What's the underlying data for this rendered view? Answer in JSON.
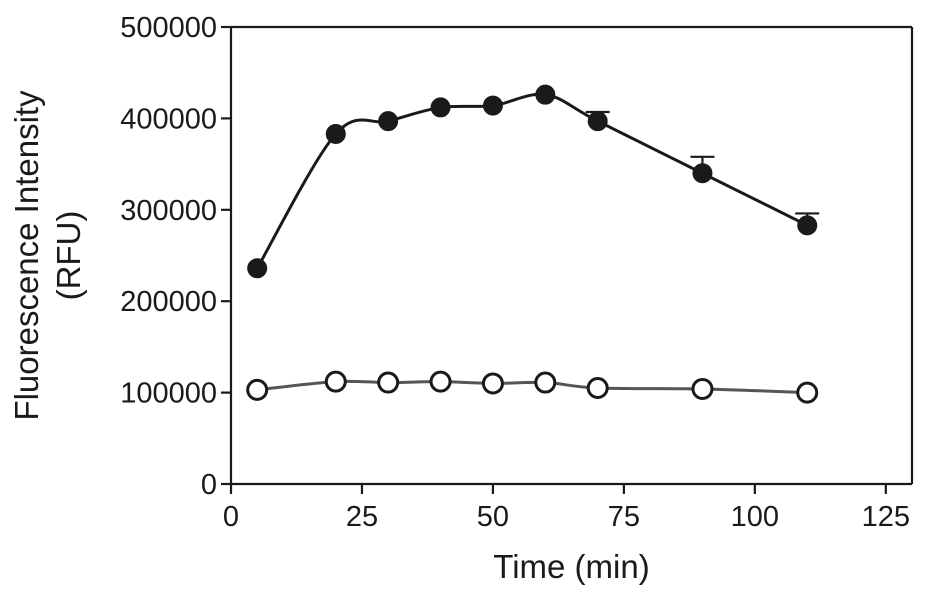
{
  "chart_data": {
    "type": "line",
    "title": "",
    "xlabel": "Time (min)",
    "ylabel_lines": [
      "Fluorescence Intensity",
      "(RFU)"
    ],
    "xlim": [
      0,
      130
    ],
    "ylim": [
      0,
      500000
    ],
    "xticks": [
      0,
      25,
      50,
      75,
      100,
      125
    ],
    "yticks": [
      0,
      100000,
      200000,
      300000,
      400000,
      500000
    ],
    "xtick_labels": [
      "0",
      "25",
      "50",
      "75",
      "100",
      "125"
    ],
    "ytick_labels": [
      "0",
      "100000",
      "200000",
      "300000",
      "400000",
      "500000"
    ],
    "grid": false,
    "legend": "none",
    "series": [
      {
        "marker": "filled-circle",
        "color": "#1a1a1a",
        "x": [
          5,
          20,
          30,
          40,
          50,
          60,
          70,
          90,
          110
        ],
        "y": [
          236000,
          383000,
          397000,
          412000,
          414000,
          426000,
          397000,
          340000,
          283000
        ],
        "error_upper": [
          0,
          0,
          0,
          0,
          0,
          0,
          10000,
          18000,
          13000
        ]
      },
      {
        "marker": "open-circle",
        "color": "#555555",
        "x": [
          5,
          20,
          30,
          40,
          50,
          60,
          70,
          90,
          110
        ],
        "y": [
          103000,
          112000,
          111000,
          112000,
          110000,
          111000,
          105000,
          104000,
          100000
        ],
        "error_upper": [
          0,
          0,
          0,
          0,
          0,
          0,
          0,
          0,
          0
        ]
      }
    ]
  }
}
